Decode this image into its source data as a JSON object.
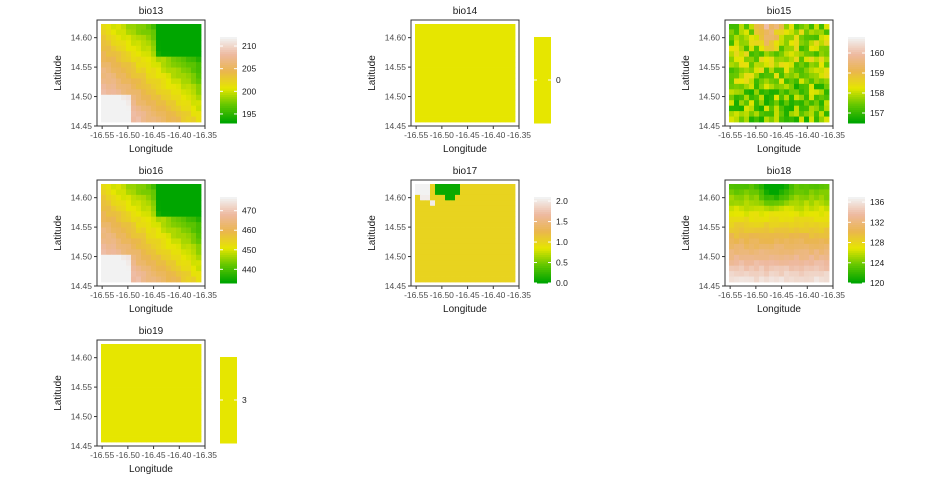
{
  "chart_data": [
    {
      "type": "heatmap",
      "title": "bio13",
      "xlabel": "Longitude",
      "ylabel": "Latitude",
      "xticks": [
        "-16.55",
        "-16.50",
        "-16.45",
        "-16.40",
        "-16.35"
      ],
      "yticks": [
        "14.45",
        "14.50",
        "14.55",
        "14.60"
      ],
      "xlim": [
        -16.56,
        -16.35
      ],
      "ylim": [
        14.45,
        14.63
      ],
      "legend": {
        "min": 193,
        "max": 212,
        "ticks": [
          195,
          200,
          205,
          210
        ]
      },
      "pattern": "diagonal_gradient_low_top_right",
      "value_range": [
        193,
        212
      ]
    },
    {
      "type": "heatmap",
      "title": "bio14",
      "xlabel": "Longitude",
      "ylabel": "Latitude",
      "xticks": [
        "-16.55",
        "-16.50",
        "-16.45",
        "-16.40",
        "-16.35"
      ],
      "yticks": [
        "14.45",
        "14.50",
        "14.55",
        "14.60"
      ],
      "xlim": [
        -16.56,
        -16.35
      ],
      "ylim": [
        14.45,
        14.63
      ],
      "legend": {
        "min": -1,
        "max": 1,
        "ticks": [
          0
        ]
      },
      "pattern": "constant",
      "value_range": [
        0,
        0
      ]
    },
    {
      "type": "heatmap",
      "title": "bio15",
      "xlabel": "Longitude",
      "ylabel": "Latitude",
      "xticks": [
        "-16.55",
        "-16.50",
        "-16.45",
        "-16.40",
        "-16.35"
      ],
      "yticks": [
        "14.45",
        "14.50",
        "14.55",
        "14.60"
      ],
      "xlim": [
        -16.56,
        -16.35
      ],
      "ylim": [
        14.45,
        14.63
      ],
      "legend": {
        "min": 156.5,
        "max": 160.8,
        "ticks": [
          157,
          158,
          159,
          160
        ]
      },
      "pattern": "noisy_green_high_top_center",
      "value_range": [
        156.5,
        160.8
      ]
    },
    {
      "type": "heatmap",
      "title": "bio16",
      "xlabel": "Longitude",
      "ylabel": "Latitude",
      "xticks": [
        "-16.55",
        "-16.50",
        "-16.45",
        "-16.40",
        "-16.35"
      ],
      "yticks": [
        "14.45",
        "14.50",
        "14.55",
        "14.60"
      ],
      "xlim": [
        -16.56,
        -16.35
      ],
      "ylim": [
        14.45,
        14.63
      ],
      "legend": {
        "min": 433,
        "max": 477,
        "ticks": [
          440,
          450,
          460,
          470
        ]
      },
      "pattern": "diagonal_gradient_low_top_right",
      "value_range": [
        433,
        477
      ]
    },
    {
      "type": "heatmap",
      "title": "bio17",
      "xlabel": "Longitude",
      "ylabel": "Latitude",
      "xticks": [
        "-16.55",
        "-16.50",
        "-16.45",
        "-16.40",
        "-16.35"
      ],
      "yticks": [
        "14.45",
        "14.50",
        "14.55",
        "14.60"
      ],
      "xlim": [
        -16.56,
        -16.35
      ],
      "ylim": [
        14.45,
        14.63
      ],
      "legend": {
        "min": 0,
        "max": 2.1,
        "ticks": [
          0.0,
          0.5,
          1.0,
          1.5,
          2.0
        ]
      },
      "pattern": "mostly_one_with_spots",
      "value_range": [
        0,
        2
      ]
    },
    {
      "type": "heatmap",
      "title": "bio18",
      "xlabel": "Longitude",
      "ylabel": "Latitude",
      "xticks": [
        "-16.55",
        "-16.50",
        "-16.45",
        "-16.40",
        "-16.35"
      ],
      "yticks": [
        "14.45",
        "14.50",
        "14.55",
        "14.60"
      ],
      "xlim": [
        -16.56,
        -16.35
      ],
      "ylim": [
        14.45,
        14.63
      ],
      "legend": {
        "min": 120,
        "max": 137,
        "ticks": [
          120,
          124,
          128,
          132,
          136
        ]
      },
      "pattern": "vertical_gradient_low_top",
      "value_range": [
        120,
        137
      ]
    },
    {
      "type": "heatmap",
      "title": "bio19",
      "xlabel": "Longitude",
      "ylabel": "Latitude",
      "xticks": [
        "-16.55",
        "-16.50",
        "-16.45",
        "-16.40",
        "-16.35"
      ],
      "yticks": [
        "14.45",
        "14.50",
        "14.55",
        "14.60"
      ],
      "xlim": [
        -16.56,
        -16.35
      ],
      "ylim": [
        14.45,
        14.63
      ],
      "legend": {
        "min": 2,
        "max": 4,
        "ticks": [
          3
        ]
      },
      "pattern": "constant",
      "value_range": [
        3,
        3
      ]
    }
  ],
  "colors": {
    "palette": [
      "#00A600",
      "#63C600",
      "#E6E600",
      "#EAB64E",
      "#EEB99F",
      "#F2F2F2"
    ],
    "axis": "#333333",
    "tick_text": "#4d4d4d"
  }
}
